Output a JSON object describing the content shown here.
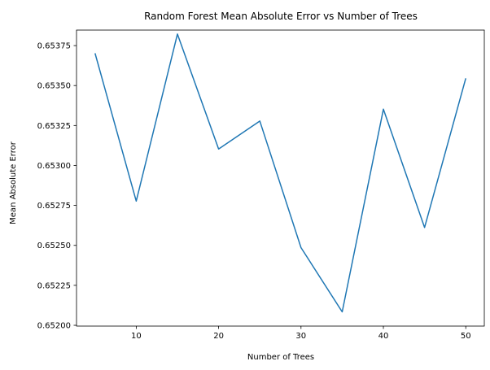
{
  "chart_data": {
    "type": "line",
    "title": "Random Forest Mean Absolute Error vs Number of Trees",
    "xlabel": "Number of Trees",
    "ylabel": "Mean Absolute Error",
    "xlim": [
      2.75,
      52.25
    ],
    "ylim": [
      0.651995,
      0.653847
    ],
    "x_ticks": [
      10,
      20,
      30,
      40,
      50
    ],
    "x_tick_labels": [
      "10",
      "20",
      "30",
      "40",
      "50"
    ],
    "y_ticks": [
      0.652,
      0.65225,
      0.6525,
      0.65275,
      0.653,
      0.65325,
      0.6535,
      0.65375
    ],
    "y_tick_labels": [
      "0.65200",
      "0.65225",
      "0.65250",
      "0.65275",
      "0.65300",
      "0.65325",
      "0.65350",
      "0.65375"
    ],
    "grid": false,
    "series": [
      {
        "color": "#1f77b4",
        "x": [
          5,
          10,
          15,
          20,
          25,
          30,
          35,
          40,
          45,
          50
        ],
        "y": [
          0.653702,
          0.652777,
          0.653822,
          0.653103,
          0.653278,
          0.652486,
          0.652084,
          0.653352,
          0.652612,
          0.653545
        ]
      }
    ]
  }
}
